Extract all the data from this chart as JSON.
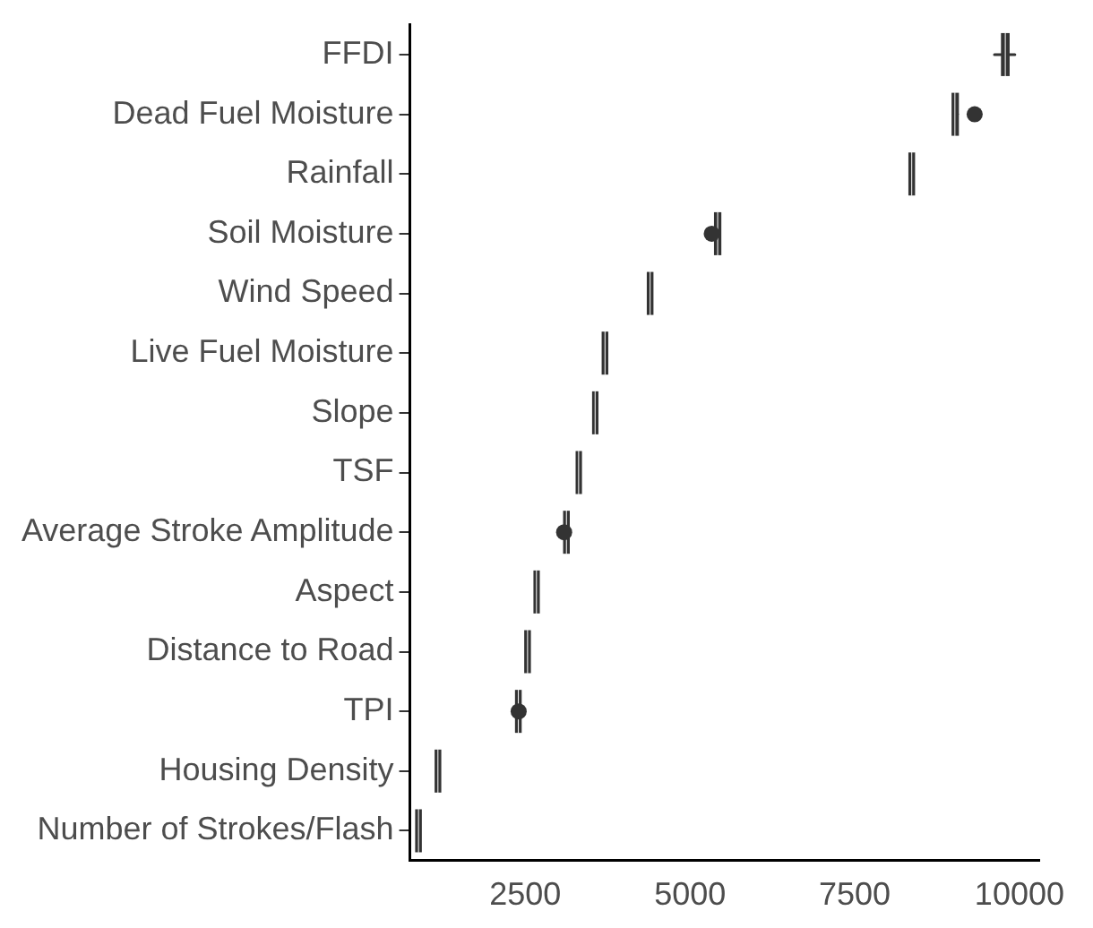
{
  "chart_data": {
    "type": "box",
    "orientation": "horizontal",
    "color": "#333333",
    "categories": [
      "FFDI",
      "Dead Fuel Moisture",
      "Rainfall",
      "Soil Moisture",
      "Wind Speed",
      "Live Fuel Moisture",
      "Slope",
      "TSF",
      "Average Stroke Amplitude",
      "Aspect",
      "Distance to Road",
      "TPI",
      "Housing Density",
      "Number of Strokes/Flash"
    ],
    "boxes": [
      {
        "low": 9620,
        "q1": 9760,
        "median": 9785,
        "q3": 9810,
        "high": 9930
      },
      {
        "low": 9000,
        "q1": 9010,
        "median": 9020,
        "q3": 9040,
        "high": 9060,
        "outliers": [
          9320
        ]
      },
      {
        "low": 8350,
        "q1": 8355,
        "median": 8365,
        "q3": 8375,
        "high": 8380
      },
      {
        "low": 5400,
        "q1": 5405,
        "median": 5420,
        "q3": 5435,
        "high": 5440,
        "outliers": [
          5330
        ]
      },
      {
        "low": 4380,
        "q1": 4385,
        "median": 4395,
        "q3": 4405,
        "high": 4410
      },
      {
        "low": 3695,
        "q1": 3700,
        "median": 3710,
        "q3": 3720,
        "high": 3725
      },
      {
        "low": 3550,
        "q1": 3555,
        "median": 3560,
        "q3": 3570,
        "high": 3575
      },
      {
        "low": 3300,
        "q1": 3305,
        "median": 3310,
        "q3": 3320,
        "high": 3325
      },
      {
        "low": 3110,
        "q1": 3115,
        "median": 3125,
        "q3": 3135,
        "high": 3140,
        "outliers": [
          3090
        ]
      },
      {
        "low": 2660,
        "q1": 2665,
        "median": 2670,
        "q3": 2680,
        "high": 2685
      },
      {
        "low": 2520,
        "q1": 2525,
        "median": 2535,
        "q3": 2545,
        "high": 2550
      },
      {
        "low": 2380,
        "q1": 2385,
        "median": 2395,
        "q3": 2405,
        "high": 2410,
        "outliers": [
          2400
        ]
      },
      {
        "low": 1160,
        "q1": 1165,
        "median": 1175,
        "q3": 1185,
        "high": 1190
      },
      {
        "low": 865,
        "q1": 870,
        "median": 880,
        "q3": 890,
        "high": 895
      }
    ],
    "xlim": [
      750,
      10300
    ],
    "xticks": [
      2500,
      5000,
      7500,
      10000
    ],
    "grid": false,
    "legend": false
  }
}
